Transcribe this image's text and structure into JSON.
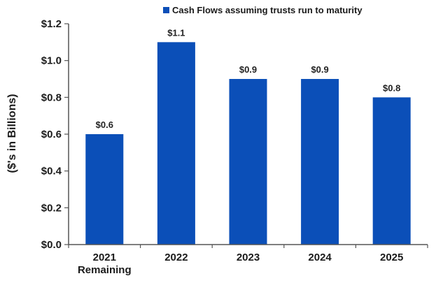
{
  "chart_data": {
    "type": "bar",
    "categories": [
      "2021\nRemaining",
      "2022",
      "2023",
      "2024",
      "2025"
    ],
    "series": [
      {
        "name": "Cash Flows assuming trusts run to maturity",
        "values": [
          0.6,
          1.1,
          0.9,
          0.9,
          0.8
        ],
        "color": "#0b4fb8"
      }
    ],
    "data_labels": [
      "$0.6",
      "$1.1",
      "$0.9",
      "$0.9",
      "$0.8"
    ],
    "y_ticks": [
      "$0.0",
      "$0.2",
      "$0.4",
      "$0.6",
      "$0.8",
      "$1.0",
      "$1.2"
    ],
    "ylabel": "($'s in Billions)",
    "ylim": [
      0,
      1.2
    ],
    "grid": false,
    "legend_position": "top-right"
  }
}
